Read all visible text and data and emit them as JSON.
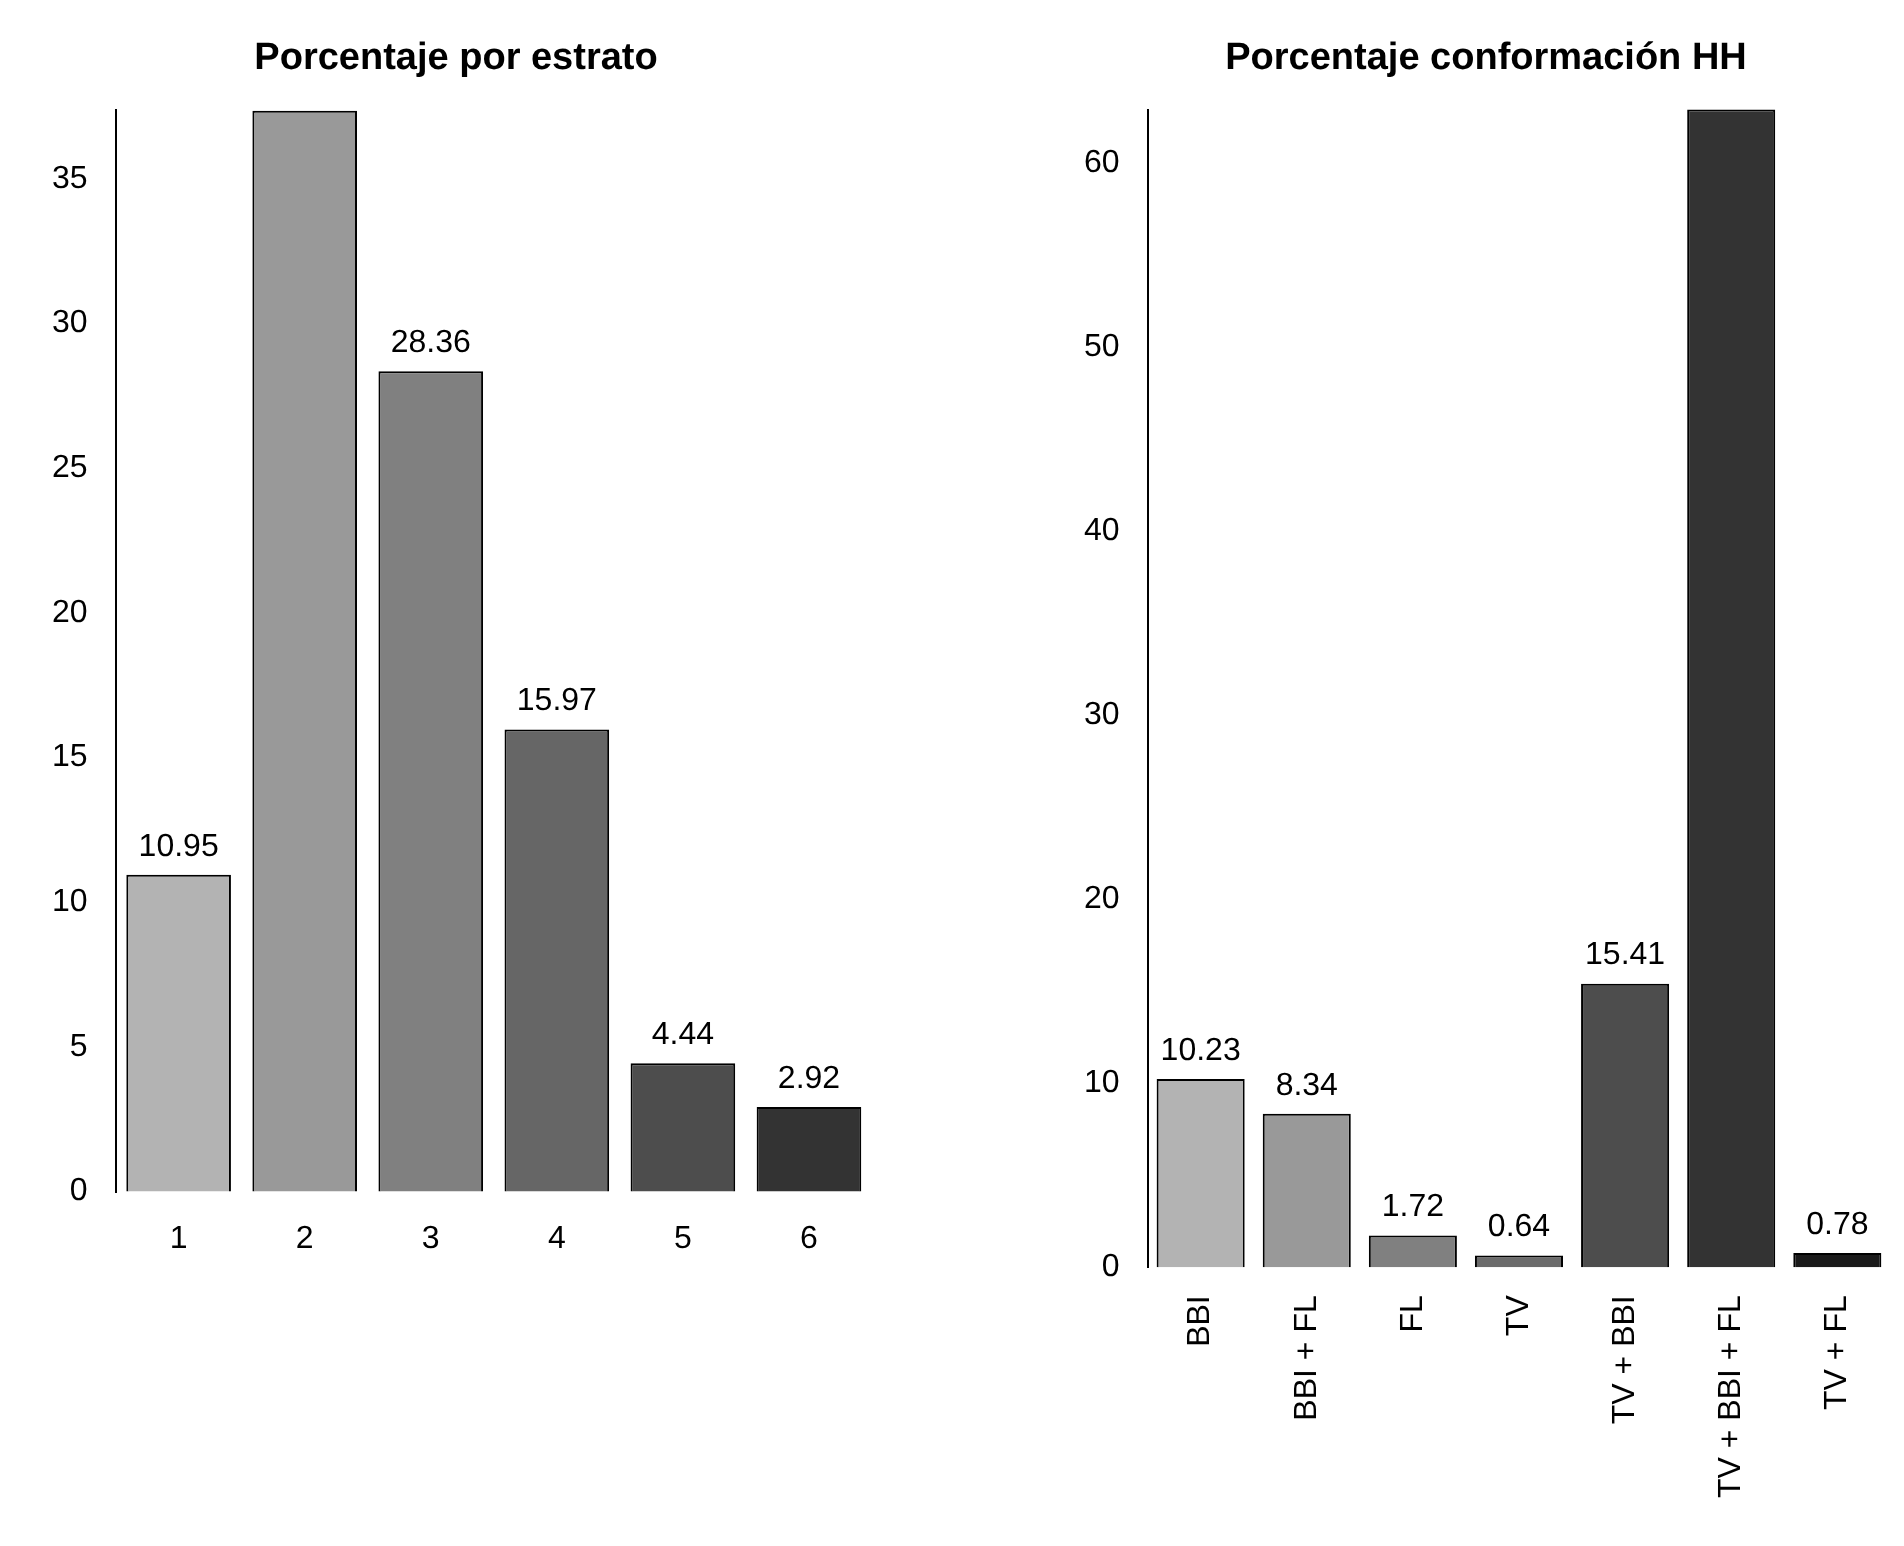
{
  "chart_data": [
    {
      "type": "bar",
      "title": "Porcentaje por estrato",
      "categories": [
        "1",
        "2",
        "3",
        "4",
        "5",
        "6"
      ],
      "values": [
        10.95,
        37.36,
        28.36,
        15.97,
        4.44,
        2.92
      ],
      "colors": [
        "#b3b3b3",
        "#999999",
        "#808080",
        "#666666",
        "#4d4d4d",
        "#333333"
      ],
      "value_labels": [
        "10.95",
        null,
        "28.36",
        "15.97",
        "4.44",
        "2.92"
      ],
      "ylim": [
        0,
        37.4
      ],
      "yticks": [
        0,
        5,
        10,
        15,
        20,
        25,
        30,
        35
      ],
      "grid": false,
      "legend": false
    },
    {
      "type": "bar",
      "title": "Porcentaje conformación HH",
      "categories": [
        "BBI",
        "BBI + FL",
        "FL",
        "TV",
        "TV + BBI",
        "TV + BBI + FL",
        "TV + FL"
      ],
      "values": [
        10.23,
        8.34,
        1.72,
        0.64,
        15.41,
        62.9,
        0.78
      ],
      "colors": [
        "#b3b3b3",
        "#999999",
        "#808080",
        "#6b6b6b",
        "#4d4d4d",
        "#333333",
        "#1a1a1a"
      ],
      "value_labels": [
        "10.23",
        "8.34",
        "1.72",
        "0.64",
        "15.41",
        null,
        "0.78"
      ],
      "ylim": [
        0,
        62.9
      ],
      "yticks": [
        0,
        10,
        20,
        30,
        40,
        50,
        60
      ],
      "grid": false,
      "legend": false
    }
  ]
}
